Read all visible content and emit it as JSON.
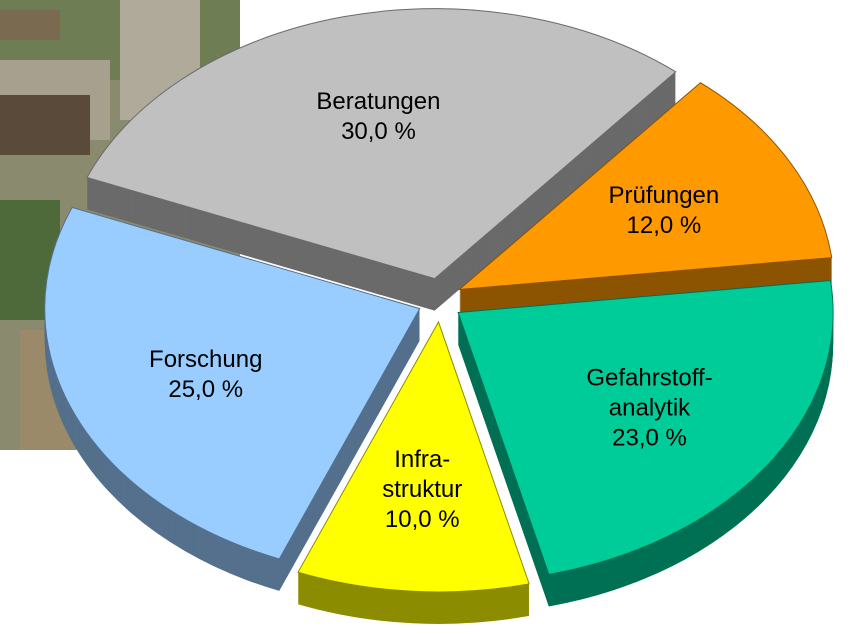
{
  "chart_data": {
    "type": "pie",
    "categories": [
      "Prüfungen",
      "Gefahrstoff-\nanalytik",
      "Infra-\nstruktur",
      "Forschung",
      "Beratungen"
    ],
    "values": [
      12,
      23,
      10,
      25,
      30
    ],
    "value_labels": [
      "12,0 %",
      "23,0 %",
      "10,0 %",
      "25,0 %",
      "30,0 %"
    ],
    "colors": [
      "#ff9900",
      "#00cc99",
      "#ffff00",
      "#99ccff",
      "#c0c0c0"
    ]
  }
}
